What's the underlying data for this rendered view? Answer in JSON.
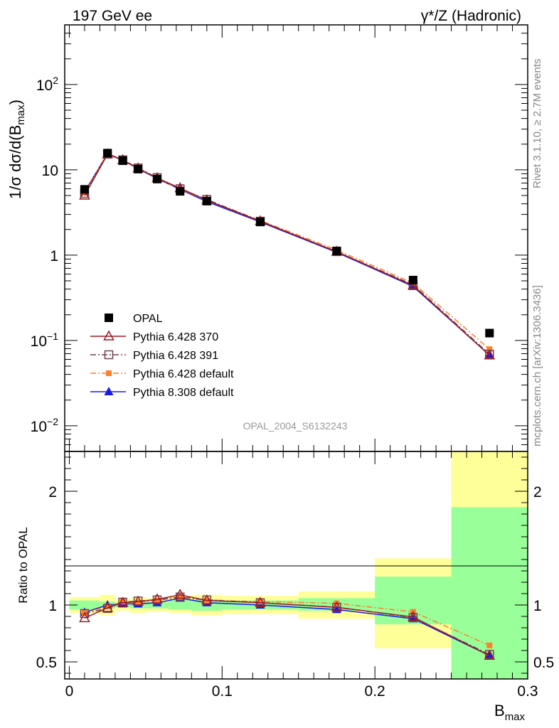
{
  "header": {
    "left": "197 GeV ee",
    "right": "γ*/Z (Hadronic)"
  },
  "side": {
    "rivet": "Rivet 3.1.10, ≥ 2.7M events",
    "mcplots": "mcplots.cern.ch [arXiv:1306.3436]"
  },
  "analysis_tag": "OPAL_2004_S6132243",
  "colors": {
    "OPAL": "#000000",
    "p370": "#9b1b22",
    "p391": "#6e4450",
    "p6def": "#ff7f2a",
    "p8def": "#1a1ae6",
    "band_inner": "#99ff99",
    "band_outer": "#ffff99"
  },
  "chart_data": [
    {
      "type": "line",
      "ylabel": "1/σ dσ/d(B_max)",
      "ylabel_main": "1/σ dσ/d(B",
      "ylabel_sub": "max",
      "ylabel_end": ")",
      "yscale": "log",
      "ylim": [
        0.005,
        500
      ],
      "xlim": [
        -0.003,
        0.3
      ],
      "y_ticks": [
        {
          "v": 0.01,
          "base": "10",
          "exp": "−2"
        },
        {
          "v": 0.1,
          "base": "10",
          "exp": "−1"
        },
        {
          "v": 1,
          "base": "1",
          "exp": ""
        },
        {
          "v": 10,
          "base": "10",
          "exp": ""
        },
        {
          "v": 100,
          "base": "10",
          "exp": "2"
        }
      ],
      "x": [
        0.01,
        0.025,
        0.035,
        0.045,
        0.0575,
        0.0725,
        0.09,
        0.125,
        0.175,
        0.225,
        0.275
      ],
      "bin_edges": [
        0.0,
        0.02,
        0.03,
        0.04,
        0.05,
        0.065,
        0.08,
        0.1,
        0.15,
        0.2,
        0.25,
        0.3
      ],
      "series": [
        {
          "name": "OPAL",
          "key": "OPAL",
          "marker": "square",
          "line": "none",
          "values": [
            5.9,
            15.7,
            12.8,
            10.2,
            7.8,
            5.6,
            4.3,
            2.45,
            1.12,
            0.51,
            0.122
          ]
        },
        {
          "name": "Pythia 6.428 370",
          "key": "p370",
          "marker": "triangle-open",
          "line": "solid",
          "values": [
            5.0,
            15.2,
            13.0,
            10.4,
            8.0,
            6.1,
            4.4,
            2.5,
            1.1,
            0.44,
            0.067
          ]
        },
        {
          "name": "Pythia 6.428 391",
          "key": "p391",
          "marker": "square-open",
          "line": "dashdot",
          "values": [
            5.3,
            15.3,
            13.1,
            10.5,
            8.1,
            6.0,
            4.5,
            2.5,
            1.1,
            0.45,
            0.069
          ]
        },
        {
          "name": "Pythia 6.428 default",
          "key": "p6def",
          "marker": "square-small",
          "line": "dashdot",
          "values": [
            5.4,
            15.6,
            13.2,
            10.4,
            8.0,
            5.9,
            4.45,
            2.55,
            1.15,
            0.47,
            0.079
          ]
        },
        {
          "name": "Pythia 8.308 default",
          "key": "p8def",
          "marker": "triangle",
          "line": "solid",
          "values": [
            5.5,
            15.5,
            13.0,
            10.3,
            7.9,
            5.9,
            4.25,
            2.45,
            1.08,
            0.43,
            0.067
          ]
        }
      ]
    },
    {
      "type": "line",
      "ylabel": "Ratio to OPAL",
      "xlabel": "B_max",
      "xlabel_main": "B",
      "xlabel_sub": "max",
      "ylim": [
        0.35,
        2.35
      ],
      "xlim": [
        -0.003,
        0.3
      ],
      "y_ticks": [
        0.5,
        1,
        2
      ],
      "y_tick_labels": [
        "0.5",
        "1",
        "2"
      ],
      "x_ticks": [
        0,
        0.1,
        0.2,
        0.3
      ],
      "x_tick_labels": [
        "0",
        "0.1",
        "0.2",
        "0.3"
      ],
      "x": [
        0.01,
        0.025,
        0.035,
        0.045,
        0.0575,
        0.0725,
        0.09,
        0.125,
        0.175,
        0.225,
        0.275
      ],
      "bin_edges": [
        0.0,
        0.02,
        0.03,
        0.04,
        0.05,
        0.065,
        0.08,
        0.1,
        0.15,
        0.2,
        0.25,
        0.3
      ],
      "band_inner": [
        [
          0.96,
          1.04
        ],
        [
          0.97,
          1.03
        ],
        [
          0.98,
          1.02
        ],
        [
          0.97,
          1.03
        ],
        [
          0.97,
          1.03
        ],
        [
          0.96,
          1.05
        ],
        [
          0.95,
          1.05
        ],
        [
          0.96,
          1.04
        ],
        [
          0.95,
          1.06
        ],
        [
          0.83,
          1.25
        ],
        [
          0.35,
          1.86
        ]
      ],
      "band_outer": [
        [
          0.93,
          1.07
        ],
        [
          0.91,
          1.09
        ],
        [
          0.95,
          1.05
        ],
        [
          0.93,
          1.07
        ],
        [
          0.94,
          1.06
        ],
        [
          0.93,
          1.08
        ],
        [
          0.91,
          1.09
        ],
        [
          0.92,
          1.08
        ],
        [
          0.88,
          1.12
        ],
        [
          0.62,
          1.41
        ],
        [
          0.35,
          2.35
        ]
      ],
      "series": [
        {
          "name": "Pythia 6.428 370",
          "key": "p370",
          "marker": "triangle-open",
          "line": "solid",
          "values": [
            0.885,
            0.975,
            1.02,
            1.03,
            1.05,
            1.09,
            1.04,
            1.02,
            0.98,
            0.895,
            0.555
          ]
        },
        {
          "name": "Pythia 6.428 391",
          "key": "p391",
          "marker": "square-open",
          "line": "dashdot",
          "values": [
            0.925,
            0.97,
            1.025,
            1.035,
            1.045,
            1.07,
            1.045,
            1.02,
            0.98,
            0.89,
            0.565
          ]
        },
        {
          "name": "Pythia 6.428 default",
          "key": "p6def",
          "marker": "square-small",
          "line": "dashdot",
          "values": [
            0.93,
            0.99,
            1.03,
            1.02,
            1.04,
            1.07,
            1.04,
            1.03,
            1.015,
            0.94,
            0.645
          ]
        },
        {
          "name": "Pythia 8.308 default",
          "key": "p8def",
          "marker": "triangle",
          "line": "solid",
          "values": [
            0.935,
            1.0,
            1.01,
            1.01,
            1.02,
            1.06,
            1.02,
            1.0,
            0.96,
            0.88,
            0.555
          ]
        }
      ]
    }
  ]
}
